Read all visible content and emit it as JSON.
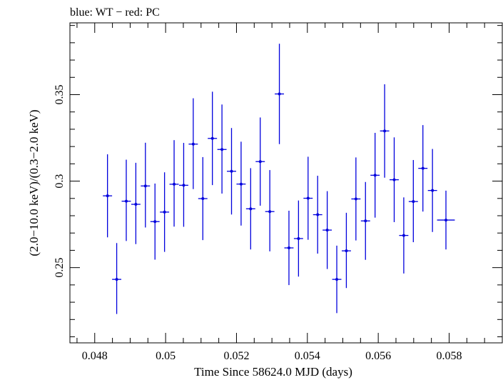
{
  "chart_data": {
    "type": "scatter",
    "title": "blue: WT − red: PC",
    "xlabel": "Time Since 58624.0 MJD (days)",
    "ylabel": "(2.0−10.0 keV)/(0.3−2.0 keV)",
    "xlim": [
      0.0473,
      0.0595
    ],
    "ylim": [
      0.2065,
      0.3915
    ],
    "grid": false,
    "x_ticks": [
      {
        "value": 0.048,
        "label": "0.048"
      },
      {
        "value": 0.05,
        "label": "0.05"
      },
      {
        "value": 0.052,
        "label": "0.052"
      },
      {
        "value": 0.054,
        "label": "0.054"
      },
      {
        "value": 0.056,
        "label": "0.056"
      },
      {
        "value": 0.058,
        "label": "0.058"
      }
    ],
    "y_ticks": [
      {
        "value": 0.25,
        "label": "0.25"
      },
      {
        "value": 0.3,
        "label": "0.3"
      },
      {
        "value": 0.35,
        "label": "0.35"
      }
    ],
    "series": [
      {
        "color": "#0000dd",
        "points": [
          {
            "x": 0.04836,
            "y": 0.2915,
            "xerr": 0.00013,
            "yerr_lo": 0.024,
            "yerr_hi": 0.024
          },
          {
            "x": 0.04862,
            "y": 0.2432,
            "xerr": 0.00013,
            "yerr_lo": 0.02,
            "yerr_hi": 0.021
          },
          {
            "x": 0.04889,
            "y": 0.2884,
            "xerr": 0.00013,
            "yerr_lo": 0.023,
            "yerr_hi": 0.024
          },
          {
            "x": 0.04916,
            "y": 0.2866,
            "xerr": 0.00013,
            "yerr_lo": 0.023,
            "yerr_hi": 0.024
          },
          {
            "x": 0.04943,
            "y": 0.2972,
            "xerr": 0.00013,
            "yerr_lo": 0.024,
            "yerr_hi": 0.025
          },
          {
            "x": 0.0497,
            "y": 0.2766,
            "xerr": 0.00013,
            "yerr_lo": 0.022,
            "yerr_hi": 0.022
          },
          {
            "x": 0.04997,
            "y": 0.2821,
            "xerr": 0.00013,
            "yerr_lo": 0.023,
            "yerr_hi": 0.023
          },
          {
            "x": 0.05024,
            "y": 0.2982,
            "xerr": 0.00013,
            "yerr_lo": 0.0245,
            "yerr_hi": 0.0255
          },
          {
            "x": 0.05051,
            "y": 0.2976,
            "xerr": 0.00013,
            "yerr_lo": 0.024,
            "yerr_hi": 0.0245
          },
          {
            "x": 0.05078,
            "y": 0.3214,
            "xerr": 0.00013,
            "yerr_lo": 0.026,
            "yerr_hi": 0.0265
          },
          {
            "x": 0.05105,
            "y": 0.2899,
            "xerr": 0.00013,
            "yerr_lo": 0.024,
            "yerr_hi": 0.024
          },
          {
            "x": 0.05132,
            "y": 0.3247,
            "xerr": 0.00013,
            "yerr_lo": 0.027,
            "yerr_hi": 0.027
          },
          {
            "x": 0.05159,
            "y": 0.3183,
            "xerr": 0.00013,
            "yerr_lo": 0.0255,
            "yerr_hi": 0.026
          },
          {
            "x": 0.05186,
            "y": 0.3057,
            "xerr": 0.00013,
            "yerr_lo": 0.025,
            "yerr_hi": 0.025
          },
          {
            "x": 0.05213,
            "y": 0.2983,
            "xerr": 0.00013,
            "yerr_lo": 0.024,
            "yerr_hi": 0.0245
          },
          {
            "x": 0.0524,
            "y": 0.284,
            "xerr": 0.00013,
            "yerr_lo": 0.0235,
            "yerr_hi": 0.0235
          },
          {
            "x": 0.05267,
            "y": 0.3113,
            "xerr": 0.00013,
            "yerr_lo": 0.0255,
            "yerr_hi": 0.0255
          },
          {
            "x": 0.05294,
            "y": 0.2824,
            "xerr": 0.00013,
            "yerr_lo": 0.023,
            "yerr_hi": 0.024
          },
          {
            "x": 0.05321,
            "y": 0.3504,
            "xerr": 0.00013,
            "yerr_lo": 0.029,
            "yerr_hi": 0.029
          },
          {
            "x": 0.05348,
            "y": 0.2614,
            "xerr": 0.00013,
            "yerr_lo": 0.0215,
            "yerr_hi": 0.0215
          },
          {
            "x": 0.05375,
            "y": 0.2668,
            "xerr": 0.00013,
            "yerr_lo": 0.022,
            "yerr_hi": 0.022
          },
          {
            "x": 0.05402,
            "y": 0.2901,
            "xerr": 0.00013,
            "yerr_lo": 0.024,
            "yerr_hi": 0.024
          },
          {
            "x": 0.05429,
            "y": 0.2806,
            "xerr": 0.00013,
            "yerr_lo": 0.0225,
            "yerr_hi": 0.0225
          },
          {
            "x": 0.05456,
            "y": 0.2717,
            "xerr": 0.00013,
            "yerr_lo": 0.0225,
            "yerr_hi": 0.0225
          },
          {
            "x": 0.05483,
            "y": 0.2432,
            "xerr": 0.00013,
            "yerr_lo": 0.0195,
            "yerr_hi": 0.0195
          },
          {
            "x": 0.0551,
            "y": 0.2597,
            "xerr": 0.00013,
            "yerr_lo": 0.0215,
            "yerr_hi": 0.022
          },
          {
            "x": 0.05537,
            "y": 0.2897,
            "xerr": 0.00013,
            "yerr_lo": 0.024,
            "yerr_hi": 0.024
          },
          {
            "x": 0.05564,
            "y": 0.277,
            "xerr": 0.00013,
            "yerr_lo": 0.0225,
            "yerr_hi": 0.0225
          },
          {
            "x": 0.05591,
            "y": 0.3034,
            "xerr": 0.00013,
            "yerr_lo": 0.0245,
            "yerr_hi": 0.0245
          },
          {
            "x": 0.05618,
            "y": 0.329,
            "xerr": 0.00013,
            "yerr_lo": 0.027,
            "yerr_hi": 0.027
          },
          {
            "x": 0.05645,
            "y": 0.3008,
            "xerr": 0.00013,
            "yerr_lo": 0.0245,
            "yerr_hi": 0.0245
          },
          {
            "x": 0.05672,
            "y": 0.2686,
            "xerr": 0.00013,
            "yerr_lo": 0.022,
            "yerr_hi": 0.022
          },
          {
            "x": 0.05699,
            "y": 0.2882,
            "xerr": 0.00013,
            "yerr_lo": 0.0235,
            "yerr_hi": 0.024
          },
          {
            "x": 0.05726,
            "y": 0.3074,
            "xerr": 0.00013,
            "yerr_lo": 0.025,
            "yerr_hi": 0.025
          },
          {
            "x": 0.05753,
            "y": 0.2946,
            "xerr": 0.00013,
            "yerr_lo": 0.024,
            "yerr_hi": 0.024
          },
          {
            "x": 0.05791,
            "y": 0.2775,
            "xerr": 0.00025,
            "yerr_lo": 0.017,
            "yerr_hi": 0.017
          }
        ]
      }
    ]
  }
}
